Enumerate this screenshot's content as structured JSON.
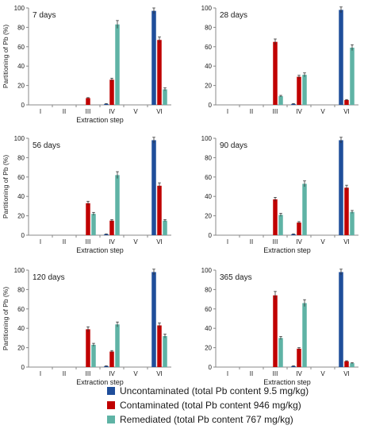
{
  "colors": {
    "uncontaminated": "#1F4E9A",
    "contaminated": "#C00000",
    "remediated": "#5FB3A5",
    "axis": "#888888",
    "grid": "#d9d9d9"
  },
  "legend": [
    {
      "label": "Uncontaminated (total Pb content 9.5 mg/kg)",
      "series": "uncontaminated"
    },
    {
      "label": "Contaminated (total Pb content 946 mg/kg)",
      "series": "contaminated"
    },
    {
      "label": "Remediated (total Pb content 767 mg/kg)",
      "series": "remediated"
    }
  ],
  "chart_data": [
    {
      "type": "bar",
      "title": "7 days",
      "xlabel": "Extraction step",
      "ylabel": "Partitioning of Pb (%)",
      "ylim": [
        0,
        100
      ],
      "yticks": [
        0,
        20,
        40,
        60,
        80,
        100
      ],
      "categories": [
        "I",
        "II",
        "III",
        "IV",
        "V",
        "VI"
      ],
      "series": [
        {
          "name": "Uncontaminated (total Pb content 9.5 mg/kg)",
          "color_key": "uncontaminated",
          "values": [
            0,
            0,
            0,
            1,
            0,
            97
          ],
          "errors": [
            0,
            0,
            0,
            0.3,
            0,
            3
          ]
        },
        {
          "name": "Contaminated (total Pb content 946 mg/kg)",
          "color_key": "contaminated",
          "values": [
            0,
            0,
            7,
            26,
            0,
            67
          ],
          "errors": [
            0,
            0,
            0.5,
            1.5,
            0,
            3
          ]
        },
        {
          "name": "Remediated (total Pb content 767 mg/kg)",
          "color_key": "remediated",
          "values": [
            0,
            0,
            0,
            83,
            0,
            16
          ],
          "errors": [
            0,
            0,
            0,
            4,
            0,
            1.5
          ]
        }
      ]
    },
    {
      "type": "bar",
      "title": "28 days",
      "xlabel": "",
      "ylabel": "",
      "ylim": [
        0,
        100
      ],
      "yticks": [
        0,
        20,
        40,
        60,
        80,
        100
      ],
      "categories": [
        "I",
        "II",
        "III",
        "IV",
        "V",
        "VI"
      ],
      "series": [
        {
          "name": "Uncontaminated (total Pb content 9.5 mg/kg)",
          "color_key": "uncontaminated",
          "values": [
            0,
            0,
            0,
            1,
            0,
            98
          ],
          "errors": [
            0,
            0,
            0,
            0.3,
            0,
            3
          ]
        },
        {
          "name": "Contaminated (total Pb content 946 mg/kg)",
          "color_key": "contaminated",
          "values": [
            0,
            0,
            65,
            29,
            0,
            5
          ],
          "errors": [
            0,
            0,
            3,
            1.5,
            0,
            0.5
          ]
        },
        {
          "name": "Remediated (total Pb content 767 mg/kg)",
          "color_key": "remediated",
          "values": [
            0,
            0,
            9,
            31,
            0,
            59
          ],
          "errors": [
            0,
            0,
            0.8,
            2,
            0,
            3
          ]
        }
      ]
    },
    {
      "type": "bar",
      "title": "56 days",
      "xlabel": "Extraction step",
      "ylabel": "Partitioning of Pb (%)",
      "ylim": [
        0,
        100
      ],
      "yticks": [
        0,
        20,
        40,
        60,
        80,
        100
      ],
      "categories": [
        "I",
        "II",
        "III",
        "IV",
        "V",
        "VI"
      ],
      "series": [
        {
          "name": "Uncontaminated (total Pb content 9.5 mg/kg)",
          "color_key": "uncontaminated",
          "values": [
            0,
            0,
            0,
            1,
            0,
            98
          ],
          "errors": [
            0,
            0,
            0,
            0.3,
            0,
            3
          ]
        },
        {
          "name": "Contaminated (total Pb content 946 mg/kg)",
          "color_key": "contaminated",
          "values": [
            0,
            0,
            33,
            15,
            0,
            51
          ],
          "errors": [
            0,
            0,
            2,
            1,
            0,
            3
          ]
        },
        {
          "name": "Remediated (total Pb content 767 mg/kg)",
          "color_key": "remediated",
          "values": [
            0,
            0,
            22,
            62,
            0,
            15
          ],
          "errors": [
            0,
            0,
            1.5,
            3.5,
            0,
            1
          ]
        }
      ]
    },
    {
      "type": "bar",
      "title": "90 days",
      "xlabel": "Extraction step",
      "ylabel": "",
      "ylim": [
        0,
        100
      ],
      "yticks": [
        0,
        20,
        40,
        60,
        80,
        100
      ],
      "categories": [
        "I",
        "II",
        "III",
        "IV",
        "V",
        "VI"
      ],
      "series": [
        {
          "name": "Uncontaminated (total Pb content 9.5 mg/kg)",
          "color_key": "uncontaminated",
          "values": [
            0,
            0,
            0,
            1,
            0,
            98
          ],
          "errors": [
            0,
            0,
            0,
            0.3,
            0,
            3
          ]
        },
        {
          "name": "Contaminated (total Pb content 946 mg/kg)",
          "color_key": "contaminated",
          "values": [
            0,
            0,
            37,
            13,
            0,
            49
          ],
          "errors": [
            0,
            0,
            2,
            1,
            0,
            2.5
          ]
        },
        {
          "name": "Remediated (total Pb content 767 mg/kg)",
          "color_key": "remediated",
          "values": [
            0,
            0,
            21,
            53,
            0,
            24
          ],
          "errors": [
            0,
            0,
            1.5,
            3,
            0,
            1.5
          ]
        }
      ]
    },
    {
      "type": "bar",
      "title": "120 days",
      "xlabel": "Extraction step",
      "ylabel": "Partitioning of Pb (%)",
      "ylim": [
        0,
        100
      ],
      "yticks": [
        0,
        20,
        40,
        60,
        80,
        100
      ],
      "categories": [
        "I",
        "II",
        "III",
        "IV",
        "V",
        "VI"
      ],
      "series": [
        {
          "name": "Uncontaminated (total Pb content 9.5 mg/kg)",
          "color_key": "uncontaminated",
          "values": [
            0,
            0,
            0,
            1,
            0,
            98
          ],
          "errors": [
            0,
            0,
            0,
            0.3,
            0,
            3
          ]
        },
        {
          "name": "Contaminated (total Pb content 946 mg/kg)",
          "color_key": "contaminated",
          "values": [
            0,
            0,
            39,
            16,
            0,
            43
          ],
          "errors": [
            0,
            0,
            2.5,
            1,
            0,
            2.5
          ]
        },
        {
          "name": "Remediated (total Pb content 767 mg/kg)",
          "color_key": "remediated",
          "values": [
            0,
            0,
            23,
            44,
            0,
            32
          ],
          "errors": [
            0,
            0,
            1.5,
            2.5,
            0,
            2
          ]
        }
      ]
    },
    {
      "type": "bar",
      "title": "365 days",
      "xlabel": "Extraction step",
      "ylabel": "",
      "ylim": [
        0,
        100
      ],
      "yticks": [
        0,
        20,
        40,
        60,
        80,
        100
      ],
      "categories": [
        "I",
        "II",
        "III",
        "IV",
        "V",
        "VI"
      ],
      "series": [
        {
          "name": "Uncontaminated (total Pb content 9.5 mg/kg)",
          "color_key": "uncontaminated",
          "values": [
            0,
            0,
            0,
            1,
            0,
            98
          ],
          "errors": [
            0,
            0,
            0,
            0.3,
            0,
            3
          ]
        },
        {
          "name": "Contaminated (total Pb content 946 mg/kg)",
          "color_key": "contaminated",
          "values": [
            0,
            0,
            74,
            19,
            0,
            6
          ],
          "errors": [
            0,
            0,
            4,
            1,
            0,
            0.5
          ]
        },
        {
          "name": "Remediated (total Pb content 767 mg/kg)",
          "color_key": "remediated",
          "values": [
            0,
            0,
            30,
            66,
            0,
            4
          ],
          "errors": [
            0,
            0,
            1.5,
            3.5,
            0,
            0.5
          ]
        }
      ]
    }
  ]
}
